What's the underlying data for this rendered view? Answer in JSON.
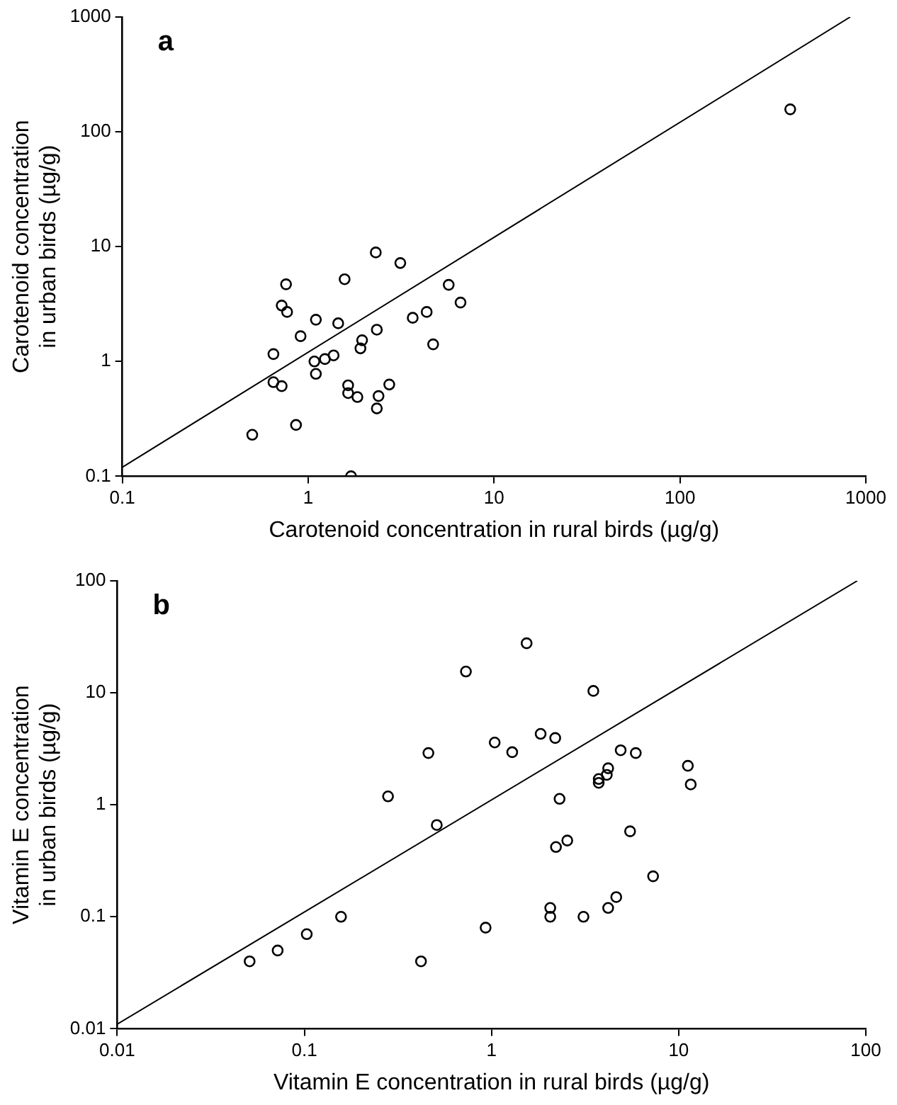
{
  "chart_data": [
    {
      "type": "scatter",
      "xlabel": "Carotenoid concentration in rural birds (µg/g)",
      "ylabel": "Carotenoid concentration\nin urban birds (µg/g)",
      "log": "xy",
      "xlim": [
        0.1,
        1000
      ],
      "ylim": [
        0.1,
        1000
      ],
      "xticks": [
        0.1,
        1,
        10,
        100,
        1000
      ],
      "yticks": [
        0.1,
        1,
        10,
        100,
        1000
      ],
      "annotations": [
        "a"
      ],
      "series": [
        {
          "marker": "circle",
          "color": "#000000",
          "x": [
            0.5,
            0.65,
            0.65,
            0.72,
            0.76,
            0.72,
            0.77,
            0.86,
            0.91,
            1.08,
            1.1,
            1.1,
            1.23,
            1.37,
            1.45,
            1.57,
            1.64,
            1.64,
            1.7,
            1.84,
            1.95,
            1.91,
            2.31,
            2.34,
            2.39,
            2.34,
            2.73,
            3.13,
            3.65,
            4.34,
            4.7,
            5.7,
            6.6,
            392
          ],
          "values": [
            0.23,
            1.16,
            0.66,
            0.61,
            4.7,
            3.07,
            2.7,
            0.28,
            1.66,
            1.0,
            0.78,
            2.31,
            1.05,
            1.13,
            2.15,
            5.2,
            0.62,
            0.53,
            0.1,
            0.49,
            1.53,
            1.3,
            8.9,
            1.89,
            0.5,
            0.39,
            0.63,
            7.2,
            2.4,
            2.7,
            1.41,
            4.65,
            3.26,
            157
          ]
        },
        {
          "type": "line",
          "color": "#000000",
          "x": [
            0.1,
            824
          ],
          "values": [
            0.12,
            1000
          ]
        }
      ]
    },
    {
      "type": "scatter",
      "xlabel": "Vitamin E concentration in rural birds (µg/g)",
      "ylabel": "Vitamin E concentration\nin urban birds (µg/g)",
      "log": "xy",
      "xlim": [
        0.01,
        100
      ],
      "ylim": [
        0.01,
        100
      ],
      "xticks": [
        0.01,
        0.1,
        1,
        10,
        100
      ],
      "yticks": [
        0.01,
        0.1,
        1,
        10,
        100
      ],
      "annotations": [
        "b"
      ],
      "series": [
        {
          "marker": "circle",
          "color": "#000000",
          "x": [
            0.051,
            0.072,
            0.103,
            0.157,
            0.28,
            0.46,
            0.51,
            0.42,
            0.73,
            0.93,
            1.04,
            1.29,
            1.54,
            3.5,
            1.83,
            2.19,
            4.9,
            5.9,
            4.2,
            4.13,
            3.74,
            3.74,
            11.2,
            11.6,
            2.31,
            5.5,
            2.54,
            2.21,
            7.3,
            4.64,
            4.2,
            2.06,
            2.06,
            3.1
          ],
          "values": [
            0.04,
            0.05,
            0.07,
            0.1,
            1.19,
            2.9,
            0.66,
            0.04,
            15.5,
            0.08,
            3.6,
            2.95,
            27.7,
            10.4,
            4.3,
            3.95,
            3.07,
            2.9,
            2.12,
            1.85,
            1.7,
            1.57,
            2.23,
            1.52,
            1.13,
            0.58,
            0.48,
            0.42,
            0.23,
            0.15,
            0.12,
            0.12,
            0.1,
            0.1
          ]
        },
        {
          "type": "line",
          "color": "#000000",
          "x": [
            0.01,
            90
          ],
          "values": [
            0.011,
            100
          ]
        }
      ]
    }
  ]
}
